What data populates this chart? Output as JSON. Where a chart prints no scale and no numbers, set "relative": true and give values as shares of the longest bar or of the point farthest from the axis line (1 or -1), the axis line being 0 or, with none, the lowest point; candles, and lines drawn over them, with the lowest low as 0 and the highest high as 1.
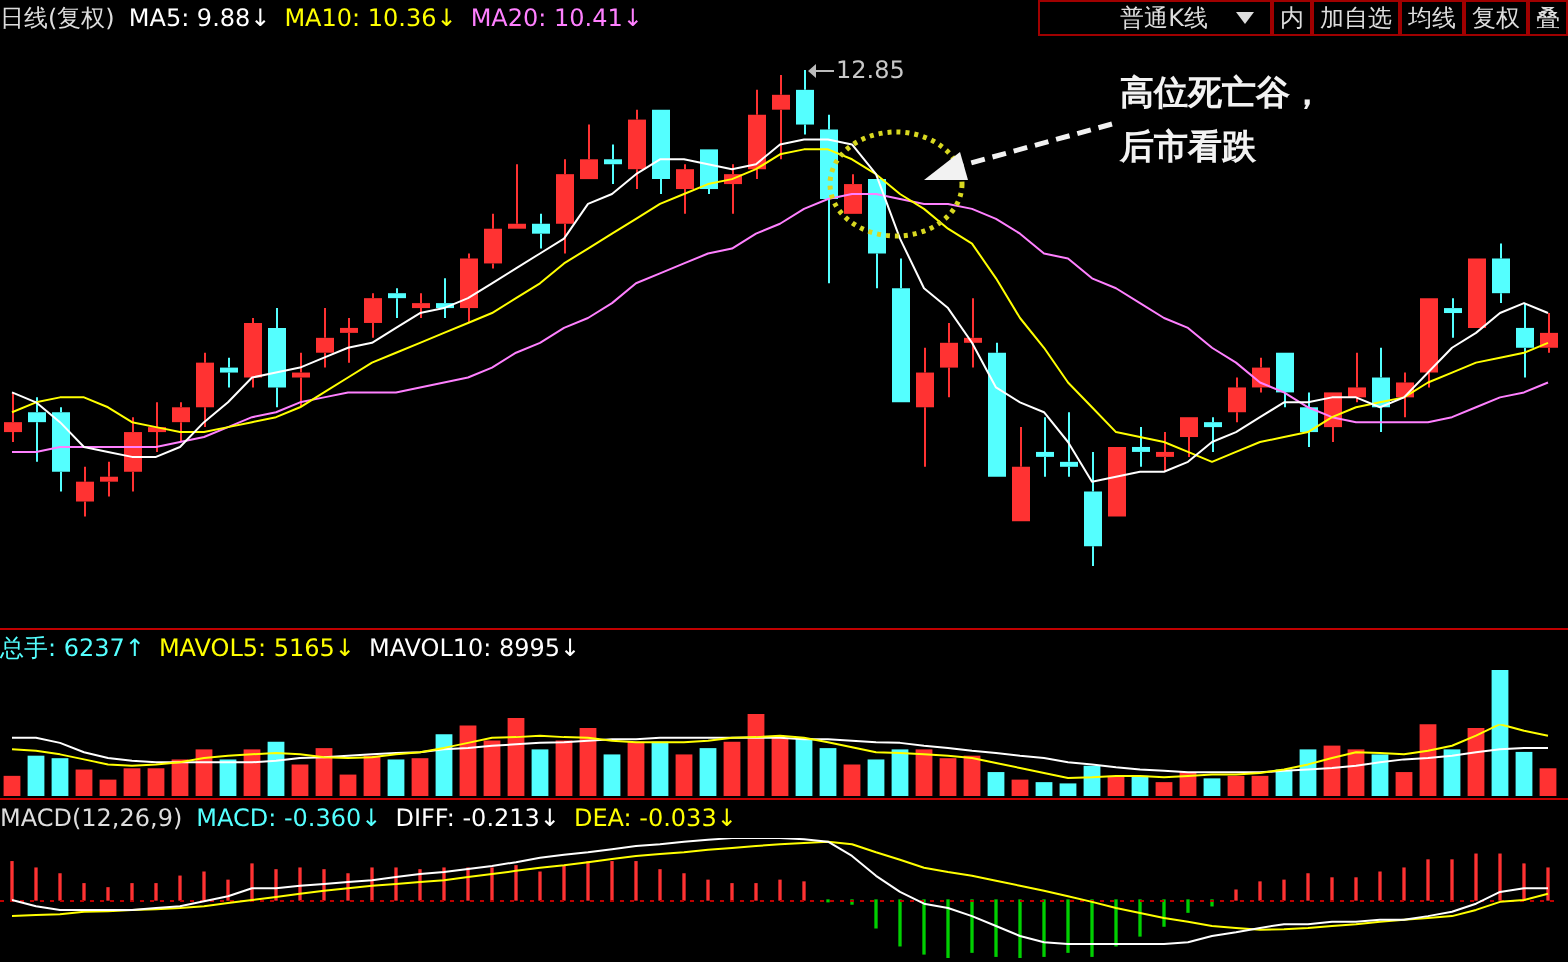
{
  "chart_data": [
    {
      "type": "candlestick",
      "title": "日线(复权)",
      "relative": true,
      "tick_labels": false,
      "marker": "none",
      "categories": [
        null,
        null,
        null,
        null,
        null,
        null,
        null,
        null,
        null,
        null,
        null,
        null,
        null,
        null,
        null,
        null,
        null,
        null,
        null,
        null,
        null,
        null,
        null,
        null,
        null,
        null,
        null,
        null,
        null,
        null,
        null,
        null,
        null,
        null,
        null,
        null,
        null,
        null,
        null,
        null,
        null,
        null,
        null,
        null,
        null,
        null,
        null,
        null,
        null,
        null,
        null,
        null,
        null,
        null,
        null,
        null,
        null,
        null,
        null,
        null,
        null,
        null,
        null,
        null,
        null
      ],
      "ohlc": [
        [
          0.27,
          0.35,
          0.25,
          0.29
        ],
        [
          0.31,
          0.34,
          0.21,
          0.29
        ],
        [
          0.31,
          0.32,
          0.15,
          0.19
        ],
        [
          0.13,
          0.2,
          0.1,
          0.17
        ],
        [
          0.17,
          0.21,
          0.14,
          0.18
        ],
        [
          0.19,
          0.3,
          0.15,
          0.27
        ],
        [
          0.27,
          0.33,
          0.23,
          0.28
        ],
        [
          0.29,
          0.33,
          0.25,
          0.32
        ],
        [
          0.32,
          0.43,
          0.28,
          0.41
        ],
        [
          0.4,
          0.42,
          0.36,
          0.39
        ],
        [
          0.38,
          0.5,
          0.36,
          0.49
        ],
        [
          0.48,
          0.52,
          0.32,
          0.36
        ],
        [
          0.38,
          0.43,
          0.32,
          0.39
        ],
        [
          0.43,
          0.52,
          0.4,
          0.46
        ],
        [
          0.47,
          0.5,
          0.41,
          0.48
        ],
        [
          0.49,
          0.55,
          0.46,
          0.54
        ],
        [
          0.55,
          0.56,
          0.5,
          0.54
        ],
        [
          0.52,
          0.55,
          0.5,
          0.53
        ],
        [
          0.53,
          0.58,
          0.5,
          0.52
        ],
        [
          0.52,
          0.63,
          0.49,
          0.62
        ],
        [
          0.61,
          0.71,
          0.6,
          0.68
        ],
        [
          0.68,
          0.81,
          0.68,
          0.69
        ],
        [
          0.69,
          0.71,
          0.64,
          0.67
        ],
        [
          0.69,
          0.82,
          0.63,
          0.79
        ],
        [
          0.78,
          0.89,
          0.78,
          0.82
        ],
        [
          0.82,
          0.85,
          0.77,
          0.81
        ],
        [
          0.8,
          0.92,
          0.76,
          0.9
        ],
        [
          0.92,
          0.92,
          0.75,
          0.78
        ],
        [
          0.76,
          0.81,
          0.71,
          0.8
        ],
        [
          0.84,
          0.84,
          0.75,
          0.76
        ],
        [
          0.77,
          0.81,
          0.71,
          0.79
        ],
        [
          0.8,
          0.96,
          0.78,
          0.91
        ],
        [
          0.92,
          0.99,
          0.82,
          0.95
        ],
        [
          0.96,
          1,
          0.87,
          0.89
        ],
        [
          0.88,
          0.91,
          0.57,
          0.74
        ],
        [
          0.71,
          0.79,
          0.71,
          0.77
        ],
        [
          0.78,
          0.78,
          0.56,
          0.63
        ],
        [
          0.56,
          0.62,
          0.33,
          0.33
        ],
        [
          0.32,
          0.44,
          0.2,
          0.39
        ],
        [
          0.4,
          0.49,
          0.34,
          0.45
        ],
        [
          0.45,
          0.54,
          0.4,
          0.46
        ],
        [
          0.43,
          0.45,
          0.18,
          0.18
        ],
        [
          0.09,
          0.28,
          0.09,
          0.2
        ],
        [
          0.23,
          0.3,
          0.18,
          0.22
        ],
        [
          0.21,
          0.31,
          0.18,
          0.2
        ],
        [
          0.15,
          0.23,
          0,
          0.04
        ],
        [
          0.1,
          0.24,
          0.1,
          0.24
        ],
        [
          0.24,
          0.28,
          0.2,
          0.23
        ],
        [
          0.22,
          0.27,
          0.19,
          0.23
        ],
        [
          0.26,
          0.3,
          0.22,
          0.3
        ],
        [
          0.29,
          0.3,
          0.23,
          0.28
        ],
        [
          0.31,
          0.38,
          0.29,
          0.36
        ],
        [
          0.36,
          0.42,
          0.35,
          0.4
        ],
        [
          0.43,
          0.43,
          0.32,
          0.35
        ],
        [
          0.32,
          0.35,
          0.24,
          0.27
        ],
        [
          0.28,
          0.35,
          0.25,
          0.35
        ],
        [
          0.34,
          0.43,
          0.33,
          0.36
        ],
        [
          0.38,
          0.44,
          0.27,
          0.32
        ],
        [
          0.34,
          0.39,
          0.3,
          0.37
        ],
        [
          0.39,
          0.54,
          0.36,
          0.54
        ],
        [
          0.52,
          0.54,
          0.46,
          0.51
        ],
        [
          0.48,
          0.62,
          0.48,
          0.62
        ],
        [
          0.62,
          0.65,
          0.53,
          0.55
        ],
        [
          0.48,
          0.53,
          0.38,
          0.44
        ],
        [
          0.44,
          0.51,
          0.43,
          0.47
        ]
      ],
      "colors": [
        "#ff3232",
        "#54ffff",
        "#54ffff",
        "#ff3232",
        "#ff3232",
        "#ff3232",
        "#ff3232",
        "#ff3232",
        "#ff3232",
        "#54ffff",
        "#ff3232",
        "#54ffff",
        "#ff3232",
        "#ff3232",
        "#ff3232",
        "#ff3232",
        "#54ffff",
        "#ff3232",
        "#54ffff",
        "#ff3232",
        "#ff3232",
        "#ff3232",
        "#54ffff",
        "#ff3232",
        "#ff3232",
        "#54ffff",
        "#ff3232",
        "#54ffff",
        "#ff3232",
        "#54ffff",
        "#ff3232",
        "#ff3232",
        "#ff3232",
        "#54ffff",
        "#54ffff",
        "#ff3232",
        "#54ffff",
        "#54ffff",
        "#ff3232",
        "#ff3232",
        "#ff3232",
        "#54ffff",
        "#ff3232",
        "#54ffff",
        "#54ffff",
        "#54ffff",
        "#ff3232",
        "#54ffff",
        "#ff3232",
        "#ff3232",
        "#54ffff",
        "#ff3232",
        "#ff3232",
        "#54ffff",
        "#54ffff",
        "#ff3232",
        "#ff3232",
        "#54ffff",
        "#ff3232",
        "#ff3232",
        "#54ffff",
        "#ff3232",
        "#54ffff",
        "#54ffff",
        "#ff3232"
      ],
      "series": [
        {
          "name": "MA5: 9.88↓",
          "type": "line",
          "color": "#ffffff",
          "values": [
            0.35,
            0.33,
            0.29,
            0.24,
            0.23,
            0.22,
            0.22,
            0.24,
            0.29,
            0.33,
            0.38,
            0.39,
            0.4,
            0.42,
            0.44,
            0.45,
            0.48,
            0.51,
            0.52,
            0.54,
            0.57,
            0.6,
            0.63,
            0.66,
            0.73,
            0.75,
            0.79,
            0.82,
            0.82,
            0.81,
            0.8,
            0.81,
            0.85,
            0.86,
            0.86,
            0.85,
            0.79,
            0.66,
            0.56,
            0.52,
            0.45,
            0.36,
            0.33,
            0.31,
            0.25,
            0.17,
            0.18,
            0.19,
            0.19,
            0.21,
            0.25,
            0.27,
            0.3,
            0.33,
            0.33,
            0.34,
            0.34,
            0.32,
            0.34,
            0.39,
            0.44,
            0.47,
            0.51,
            0.53,
            0.51
          ]
        },
        {
          "name": "MA10: 10.36↓",
          "type": "line",
          "color": "#ffff00",
          "values": [
            0.31,
            0.33,
            0.34,
            0.34,
            0.32,
            0.29,
            0.28,
            0.27,
            0.27,
            0.28,
            0.29,
            0.3,
            0.32,
            0.35,
            0.38,
            0.41,
            0.43,
            0.45,
            0.47,
            0.49,
            0.51,
            0.54,
            0.57,
            0.61,
            0.64,
            0.67,
            0.7,
            0.73,
            0.75,
            0.77,
            0.78,
            0.8,
            0.83,
            0.84,
            0.84,
            0.82,
            0.79,
            0.75,
            0.72,
            0.68,
            0.65,
            0.58,
            0.5,
            0.44,
            0.37,
            0.32,
            0.27,
            0.26,
            0.25,
            0.23,
            0.21,
            0.23,
            0.25,
            0.26,
            0.27,
            0.3,
            0.32,
            0.33,
            0.34,
            0.37,
            0.39,
            0.41,
            0.42,
            0.43,
            0.45
          ]
        },
        {
          "name": "MA20: 10.41↓",
          "type": "line",
          "color": "#ff80ff",
          "values": [
            0.23,
            0.23,
            0.24,
            0.24,
            0.24,
            0.24,
            0.24,
            0.25,
            0.26,
            0.28,
            0.3,
            0.31,
            0.33,
            0.34,
            0.35,
            0.35,
            0.35,
            0.36,
            0.37,
            0.38,
            0.4,
            0.43,
            0.45,
            0.48,
            0.5,
            0.53,
            0.57,
            0.59,
            0.61,
            0.63,
            0.64,
            0.67,
            0.69,
            0.72,
            0.74,
            0.75,
            0.75,
            0.74,
            0.73,
            0.73,
            0.72,
            0.7,
            0.67,
            0.63,
            0.62,
            0.58,
            0.56,
            0.53,
            0.5,
            0.48,
            0.44,
            0.41,
            0.37,
            0.35,
            0.32,
            0.3,
            0.29,
            0.29,
            0.29,
            0.29,
            0.3,
            0.32,
            0.34,
            0.35,
            0.37
          ]
        }
      ],
      "annotations": [
        "12.85",
        "高位死亡谷，后市看跌",
        "普通K线",
        "内",
        "加自选",
        "均线",
        "复权",
        "叠"
      ]
    },
    {
      "type": "bar",
      "relative": true,
      "tick_labels": false,
      "categories": [
        null,
        null,
        null,
        null,
        null,
        null,
        null,
        null,
        null,
        null,
        null,
        null,
        null,
        null,
        null,
        null,
        null,
        null,
        null,
        null,
        null,
        null,
        null,
        null,
        null,
        null,
        null,
        null,
        null,
        null,
        null,
        null,
        null,
        null,
        null,
        null,
        null,
        null,
        null,
        null,
        null,
        null,
        null,
        null,
        null,
        null,
        null,
        null,
        null,
        null,
        null,
        null,
        null,
        null,
        null,
        null,
        null,
        null,
        null,
        null,
        null,
        null,
        null,
        null,
        null
      ],
      "series": [
        {
          "name": "总手: 6237↑",
          "colors": [
            "#ff3232",
            "#54ffff",
            "#54ffff",
            "#ff3232",
            "#ff3232",
            "#ff3232",
            "#ff3232",
            "#ff3232",
            "#ff3232",
            "#54ffff",
            "#ff3232",
            "#54ffff",
            "#ff3232",
            "#ff3232",
            "#ff3232",
            "#ff3232",
            "#54ffff",
            "#ff3232",
            "#54ffff",
            "#ff3232",
            "#ff3232",
            "#ff3232",
            "#54ffff",
            "#ff3232",
            "#ff3232",
            "#54ffff",
            "#ff3232",
            "#54ffff",
            "#ff3232",
            "#54ffff",
            "#ff3232",
            "#ff3232",
            "#ff3232",
            "#54ffff",
            "#54ffff",
            "#ff3232",
            "#54ffff",
            "#54ffff",
            "#ff3232",
            "#ff3232",
            "#ff3232",
            "#54ffff",
            "#ff3232",
            "#54ffff",
            "#54ffff",
            "#54ffff",
            "#ff3232",
            "#54ffff",
            "#ff3232",
            "#ff3232",
            "#54ffff",
            "#ff3232",
            "#ff3232",
            "#54ffff",
            "#54ffff",
            "#ff3232",
            "#ff3232",
            "#54ffff",
            "#ff3232",
            "#ff3232",
            "#54ffff",
            "#ff3232",
            "#54ffff",
            "#54ffff",
            "#ff3232"
          ],
          "values": [
            0.16,
            0.32,
            0.3,
            0.21,
            0.13,
            0.22,
            0.22,
            0.29,
            0.37,
            0.29,
            0.37,
            0.43,
            0.25,
            0.38,
            0.17,
            0.32,
            0.29,
            0.3,
            0.49,
            0.56,
            0.44,
            0.62,
            0.37,
            0.44,
            0.54,
            0.33,
            0.43,
            0.43,
            0.33,
            0.38,
            0.43,
            0.65,
            0.46,
            0.46,
            0.38,
            0.25,
            0.29,
            0.37,
            0.37,
            0.3,
            0.32,
            0.19,
            0.13,
            0.11,
            0.1,
            0.24,
            0.16,
            0.16,
            0.11,
            0.19,
            0.14,
            0.16,
            0.16,
            0.21,
            0.37,
            0.4,
            0.37,
            0.33,
            0.19,
            0.57,
            0.37,
            0.54,
            1,
            0.35,
            0.22
          ]
        }
      ]
    },
    {
      "type": "line",
      "relative": true,
      "marker": "none",
      "tick_labels": false,
      "categories": [
        null,
        null,
        null,
        null,
        null,
        null,
        null,
        null,
        null,
        null,
        null,
        null,
        null,
        null,
        null,
        null,
        null,
        null,
        null,
        null,
        null,
        null,
        null,
        null,
        null,
        null,
        null,
        null,
        null,
        null,
        null,
        null,
        null,
        null,
        null,
        null,
        null,
        null,
        null,
        null,
        null,
        null,
        null,
        null,
        null,
        null,
        null,
        null,
        null,
        null,
        null,
        null,
        null,
        null,
        null,
        null,
        null,
        null,
        null,
        null,
        null,
        null,
        null,
        null,
        null
      ],
      "series": [
        {
          "name": "MAVOL5: 5165↓",
          "color": "#ffff00",
          "values": [
            0.65,
            0.63,
            0.58,
            0.51,
            0.44,
            0.42,
            0.44,
            0.47,
            0.53,
            0.56,
            0.58,
            0.6,
            0.58,
            0.54,
            0.53,
            0.54,
            0.58,
            0.61,
            0.67,
            0.74,
            0.81,
            0.82,
            0.84,
            0.82,
            0.81,
            0.77,
            0.75,
            0.75,
            0.75,
            0.77,
            0.81,
            0.82,
            0.84,
            0.81,
            0.75,
            0.68,
            0.61,
            0.6,
            0.58,
            0.56,
            0.53,
            0.46,
            0.39,
            0.32,
            0.25,
            0.26,
            0.28,
            0.28,
            0.26,
            0.28,
            0.3,
            0.3,
            0.32,
            0.37,
            0.44,
            0.53,
            0.61,
            0.6,
            0.58,
            0.63,
            0.7,
            0.84,
            1,
            0.91,
            0.84
          ]
        },
        {
          "name": "MAVOL10: 8995↓",
          "color": "#ffffff",
          "values": [
            0.81,
            0.81,
            0.74,
            0.61,
            0.53,
            0.49,
            0.47,
            0.47,
            0.47,
            0.47,
            0.47,
            0.49,
            0.53,
            0.54,
            0.56,
            0.58,
            0.6,
            0.61,
            0.65,
            0.67,
            0.7,
            0.72,
            0.74,
            0.75,
            0.77,
            0.79,
            0.79,
            0.81,
            0.81,
            0.81,
            0.81,
            0.81,
            0.81,
            0.79,
            0.79,
            0.77,
            0.75,
            0.74,
            0.7,
            0.67,
            0.63,
            0.6,
            0.56,
            0.53,
            0.47,
            0.44,
            0.4,
            0.37,
            0.35,
            0.33,
            0.33,
            0.33,
            0.33,
            0.35,
            0.37,
            0.39,
            0.42,
            0.47,
            0.51,
            0.53,
            0.56,
            0.61,
            0.65,
            0.67,
            0.67
          ]
        }
      ]
    },
    {
      "type": "bar",
      "title": "MACD(12,26,9)",
      "relative": true,
      "tick_labels": false,
      "categories": [
        null,
        null,
        null,
        null,
        null,
        null,
        null,
        null,
        null,
        null,
        null,
        null,
        null,
        null,
        null,
        null,
        null,
        null,
        null,
        null,
        null,
        null,
        null,
        null,
        null,
        null,
        null,
        null,
        null,
        null,
        null,
        null,
        null,
        null,
        null,
        null,
        null,
        null,
        null,
        null,
        null,
        null,
        null,
        null,
        null,
        null,
        null,
        null,
        null,
        null,
        null,
        null,
        null,
        null,
        null,
        null,
        null,
        null,
        null,
        null,
        null,
        null,
        null,
        null,
        null
      ],
      "series": [
        {
          "name": "MACD: -0.360↓",
          "colors": [
            "#ff3232",
            "#ff3232",
            "#ff3232",
            "#ff3232",
            "#ff3232",
            "#ff3232",
            "#ff3232",
            "#ff3232",
            "#ff3232",
            "#ff3232",
            "#ff3232",
            "#ff3232",
            "#ff3232",
            "#ff3232",
            "#ff3232",
            "#ff3232",
            "#ff3232",
            "#ff3232",
            "#ff3232",
            "#ff3232",
            "#ff3232",
            "#ff3232",
            "#ff3232",
            "#ff3232",
            "#ff3232",
            "#ff3232",
            "#ff3232",
            "#ff3232",
            "#ff3232",
            "#ff3232",
            "#ff3232",
            "#ff3232",
            "#ff3232",
            "#ff3232",
            "#00d000",
            "#00d000",
            "#00d000",
            "#00d000",
            "#00d000",
            "#00d000",
            "#00d000",
            "#00d000",
            "#00d000",
            "#00d000",
            "#00d000",
            "#00d000",
            "#00d000",
            "#00d000",
            "#00d000",
            "#00d000",
            "#00d000",
            "#ff3232",
            "#ff3232",
            "#ff3232",
            "#ff3232",
            "#ff3232",
            "#ff3232",
            "#ff3232",
            "#ff3232",
            "#ff3232",
            "#ff3232",
            "#ff3232",
            "#ff3232",
            "#ff3232",
            "#ff3232"
          ],
          "values": [
            0.66,
            0.55,
            0.45,
            0.28,
            0.21,
            0.28,
            0.28,
            0.41,
            0.48,
            0.34,
            0.62,
            0.52,
            0.55,
            0.52,
            0.45,
            0.55,
            0.55,
            0.52,
            0.55,
            0.55,
            0.55,
            0.59,
            0.48,
            0.59,
            0.66,
            0.66,
            0.66,
            0.52,
            0.45,
            0.34,
            0.28,
            0.28,
            0.34,
            0.31,
            -0.03,
            -0.07,
            -0.48,
            -0.79,
            -0.93,
            -1,
            -0.9,
            -0.97,
            -1,
            -0.97,
            -0.9,
            -0.97,
            -0.79,
            -0.62,
            -0.45,
            -0.21,
            -0.1,
            0.17,
            0.31,
            0.34,
            0.45,
            0.38,
            0.38,
            0.48,
            0.55,
            0.69,
            0.69,
            0.79,
            0.79,
            0.62,
            0.55
          ]
        }
      ]
    },
    {
      "type": "line",
      "relative": true,
      "marker": "none",
      "tick_labels": false,
      "ref_lines": [
        {
          "axis": "y",
          "value": 0,
          "color": "#c00000",
          "line_style": "dotted"
        }
      ],
      "categories": [
        null,
        null,
        null,
        null,
        null,
        null,
        null,
        null,
        null,
        null,
        null,
        null,
        null,
        null,
        null,
        null,
        null,
        null,
        null,
        null,
        null,
        null,
        null,
        null,
        null,
        null,
        null,
        null,
        null,
        null,
        null,
        null,
        null,
        null,
        null,
        null,
        null,
        null,
        null,
        null,
        null,
        null,
        null,
        null,
        null,
        null,
        null,
        null,
        null,
        null,
        null,
        null,
        null,
        null,
        null,
        null,
        null,
        null,
        null,
        null,
        null,
        null,
        null,
        null,
        null
      ],
      "series": [
        {
          "name": "DIFF: -0.213↓",
          "color": "#ffffff",
          "values": [
            0,
            -0.1,
            -0.16,
            -0.16,
            -0.16,
            -0.16,
            -0.13,
            -0.1,
            -0.02,
            0.06,
            0.19,
            0.19,
            0.23,
            0.26,
            0.29,
            0.32,
            0.37,
            0.42,
            0.45,
            0.5,
            0.55,
            0.61,
            0.68,
            0.73,
            0.77,
            0.82,
            0.87,
            0.9,
            0.94,
            0.97,
            1,
            1,
            1,
            0.98,
            0.94,
            0.71,
            0.39,
            0.13,
            -0.06,
            -0.13,
            -0.26,
            -0.42,
            -0.58,
            -0.68,
            -0.71,
            -0.71,
            -0.71,
            -0.71,
            -0.71,
            -0.68,
            -0.58,
            -0.52,
            -0.45,
            -0.39,
            -0.39,
            -0.35,
            -0.35,
            -0.32,
            -0.32,
            -0.26,
            -0.19,
            -0.06,
            0.13,
            0.19,
            0.19
          ]
        },
        {
          "name": "DEA: -0.033↓",
          "color": "#ffff00",
          "values": [
            -0.26,
            -0.24,
            -0.23,
            -0.19,
            -0.18,
            -0.16,
            -0.15,
            -0.13,
            -0.1,
            -0.05,
            0,
            0.05,
            0.1,
            0.15,
            0.19,
            0.23,
            0.26,
            0.29,
            0.32,
            0.37,
            0.42,
            0.47,
            0.52,
            0.56,
            0.61,
            0.66,
            0.71,
            0.74,
            0.77,
            0.81,
            0.84,
            0.87,
            0.9,
            0.92,
            0.94,
            0.9,
            0.77,
            0.65,
            0.52,
            0.45,
            0.39,
            0.31,
            0.23,
            0.15,
            0.06,
            -0.03,
            -0.13,
            -0.21,
            -0.29,
            -0.35,
            -0.42,
            -0.45,
            -0.48,
            -0.47,
            -0.45,
            -0.42,
            -0.39,
            -0.35,
            -0.32,
            -0.29,
            -0.26,
            -0.16,
            -0.03,
            0,
            0.1
          ]
        }
      ]
    }
  ]
}
